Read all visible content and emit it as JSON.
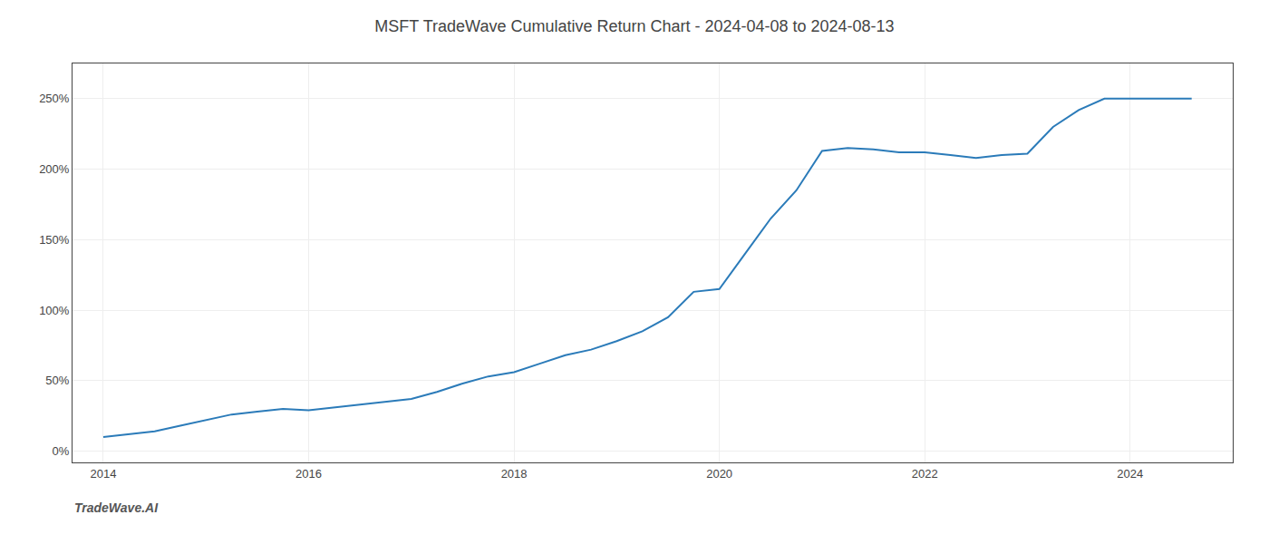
{
  "chart_data": {
    "type": "line",
    "title": "MSFT TradeWave Cumulative Return Chart - 2024-04-08 to 2024-08-13",
    "annotations": [
      {
        "text": "TradeWave.AI"
      }
    ],
    "x": [
      2014.0,
      2014.25,
      2014.5,
      2014.75,
      2015.0,
      2015.25,
      2015.5,
      2015.75,
      2016.0,
      2016.25,
      2016.5,
      2016.75,
      2017.0,
      2017.25,
      2017.5,
      2017.75,
      2018.0,
      2018.25,
      2018.5,
      2018.75,
      2019.0,
      2019.25,
      2019.5,
      2019.75,
      2020.0,
      2020.25,
      2020.5,
      2020.75,
      2021.0,
      2021.25,
      2021.5,
      2021.75,
      2022.0,
      2022.25,
      2022.5,
      2022.75,
      2023.0,
      2023.25,
      2023.5,
      2023.75,
      2024.0,
      2024.6
    ],
    "values": [
      10,
      12,
      14,
      18,
      22,
      26,
      28,
      30,
      29,
      31,
      33,
      35,
      37,
      42,
      48,
      53,
      56,
      62,
      68,
      72,
      78,
      85,
      95,
      113,
      115,
      140,
      165,
      185,
      213,
      215,
      214,
      212,
      212,
      210,
      208,
      210,
      211,
      230,
      242,
      250,
      250,
      250
    ],
    "color": "#2b7bb9",
    "xlim": [
      2013.7,
      2025.0
    ],
    "xticks": [
      2014,
      2016,
      2018,
      2020,
      2022,
      2024
    ],
    "ylim": [
      -8,
      275
    ],
    "yticks": [
      {
        "value": 0,
        "label": "0%"
      },
      {
        "value": 50,
        "label": "50%"
      },
      {
        "value": 100,
        "label": "100%"
      },
      {
        "value": 150,
        "label": "150%"
      },
      {
        "value": 200,
        "label": "200%"
      },
      {
        "value": 250,
        "label": "250%"
      }
    ],
    "grid": true
  }
}
